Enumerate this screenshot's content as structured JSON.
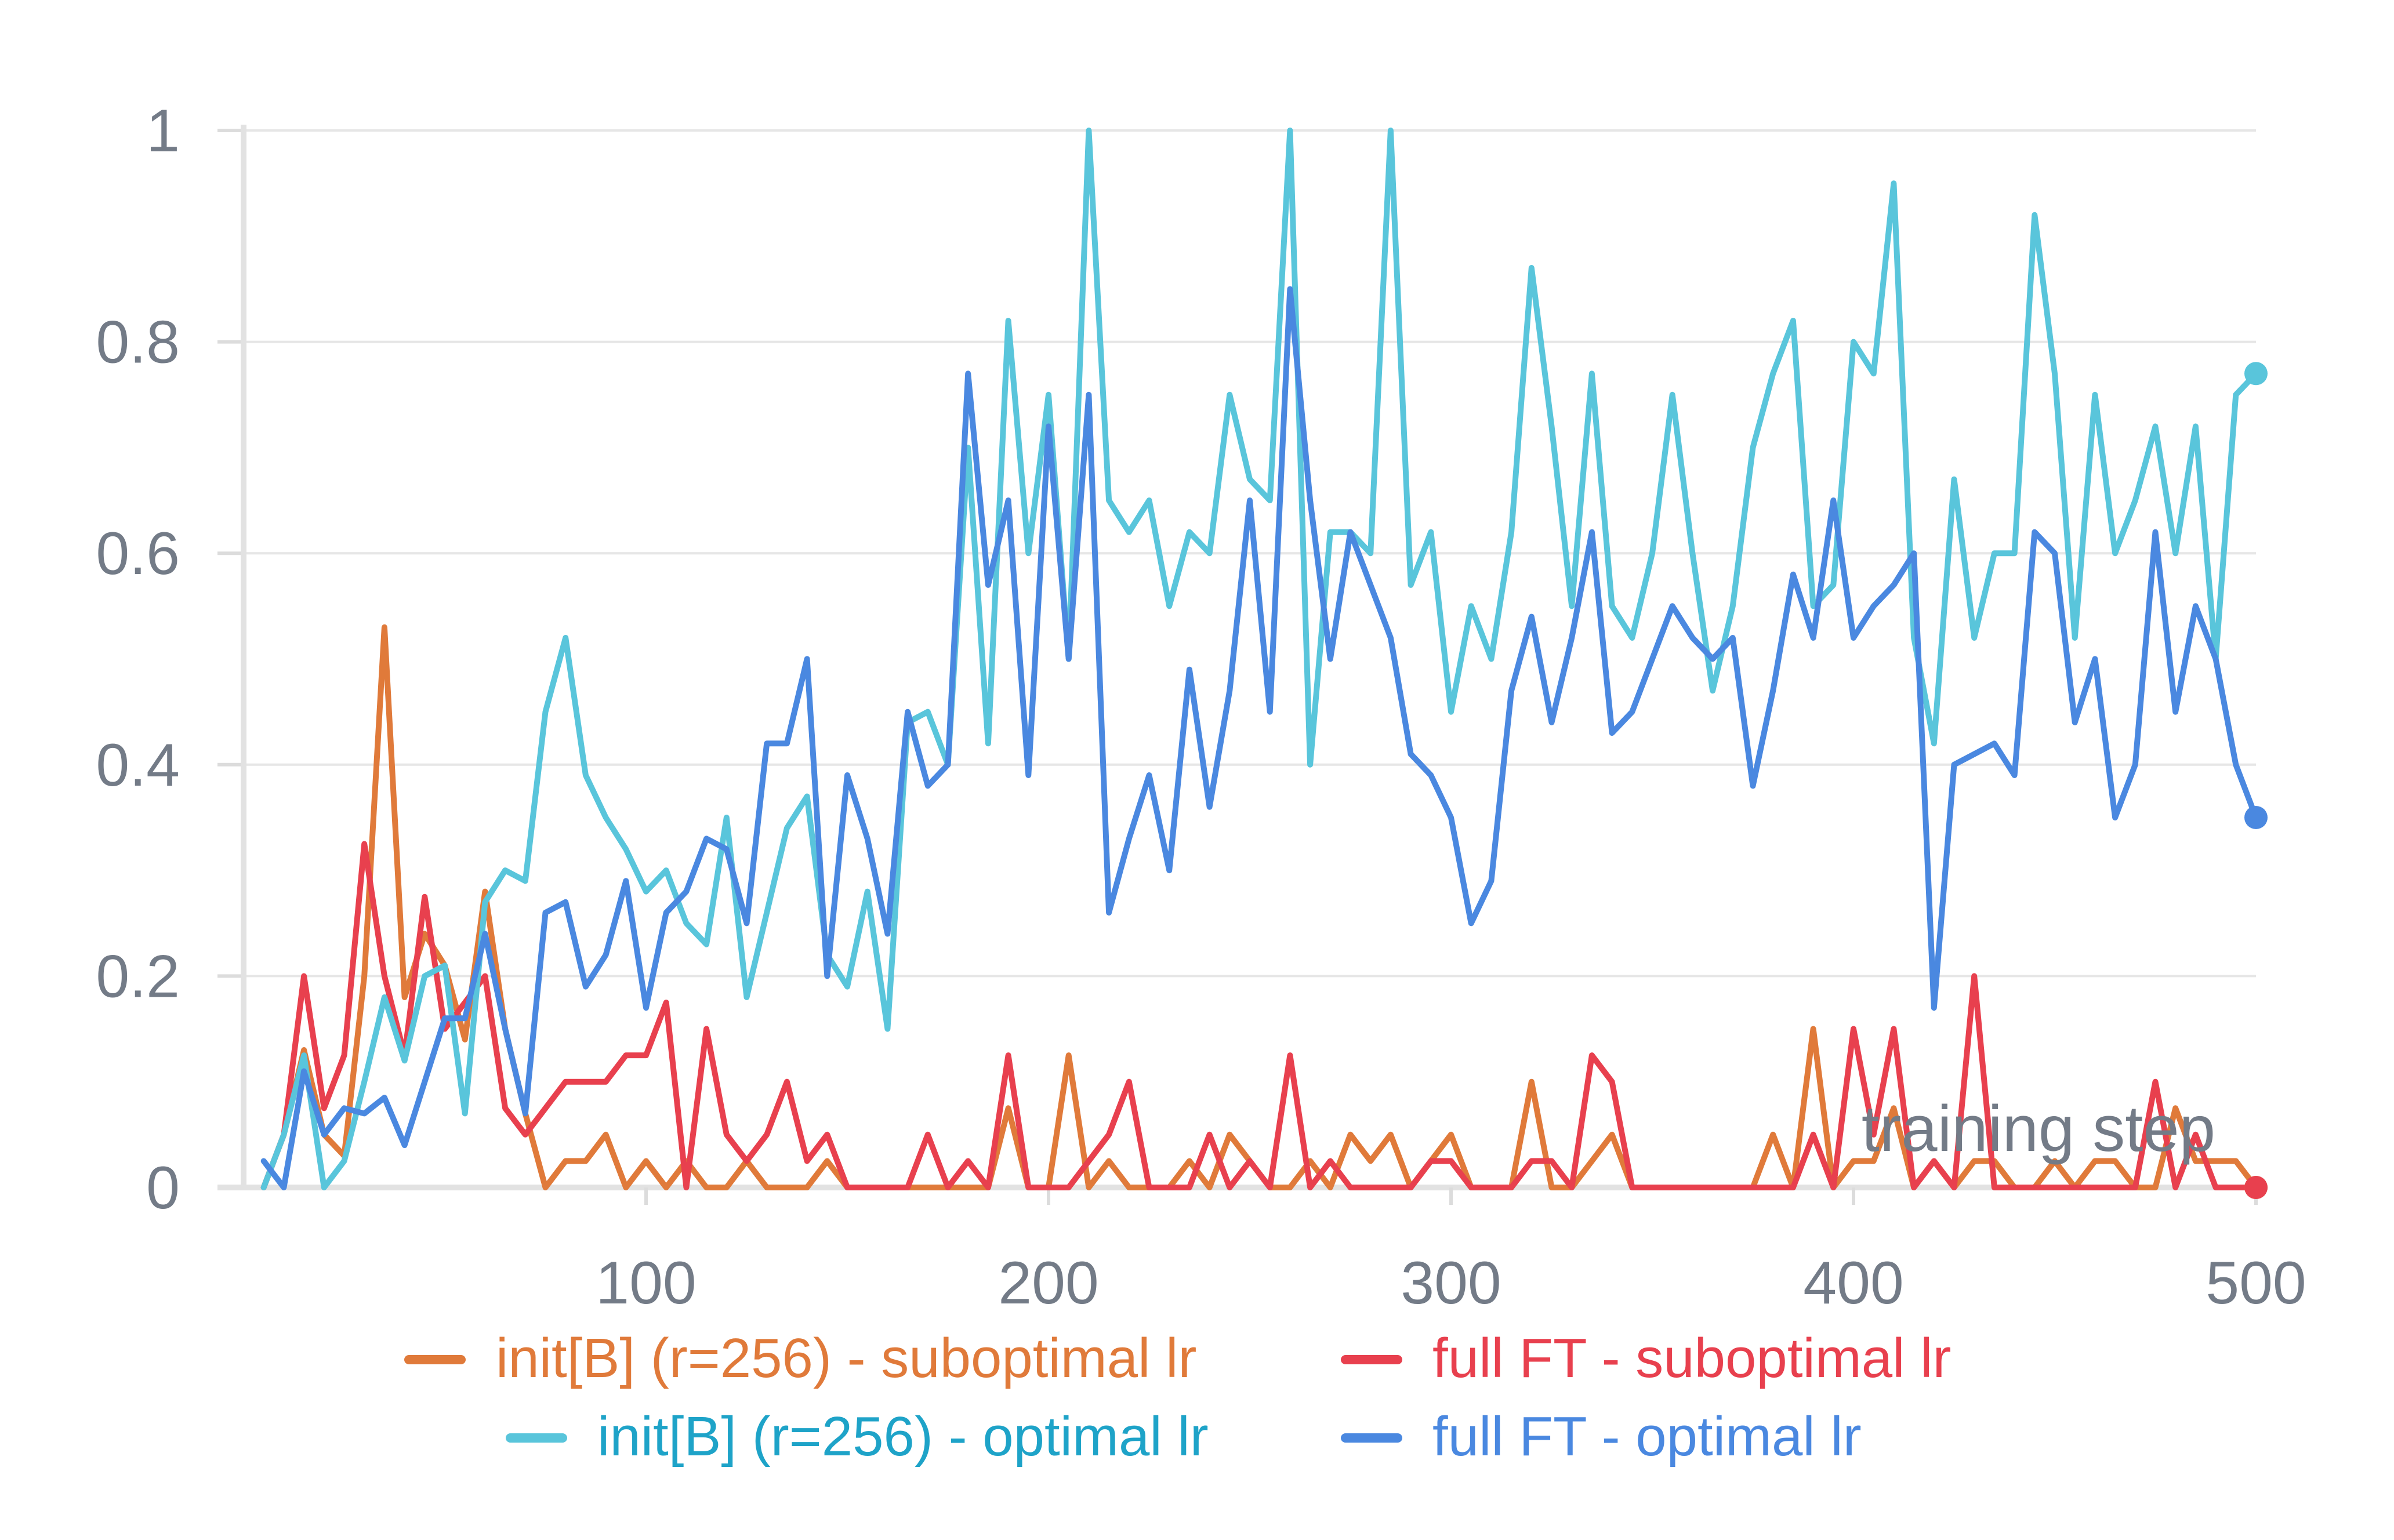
{
  "chart_data": {
    "type": "line",
    "title": "",
    "xlabel": "training step",
    "ylabel": "",
    "xlim": [
      0,
      500
    ],
    "ylim": [
      0,
      1
    ],
    "xticks": [
      100,
      200,
      300,
      400,
      500
    ],
    "xtick_labels": [
      "100",
      "200",
      "300",
      "400",
      "500"
    ],
    "yticks": [
      0,
      0.2,
      0.4,
      0.6,
      0.8,
      1
    ],
    "ytick_labels": [
      "0",
      "0.2",
      "0.4",
      "0.6",
      "0.8",
      "1"
    ],
    "grid": true,
    "legend_position": "bottom",
    "x": [
      5,
      10,
      15,
      20,
      25,
      30,
      35,
      40,
      45,
      50,
      55,
      60,
      65,
      70,
      75,
      80,
      85,
      90,
      95,
      100,
      105,
      110,
      115,
      120,
      125,
      130,
      135,
      140,
      145,
      150,
      155,
      160,
      165,
      170,
      175,
      180,
      185,
      190,
      195,
      200,
      205,
      210,
      215,
      220,
      225,
      230,
      235,
      240,
      245,
      250,
      255,
      260,
      265,
      270,
      275,
      280,
      285,
      290,
      295,
      300,
      305,
      310,
      315,
      320,
      325,
      330,
      335,
      340,
      345,
      350,
      355,
      360,
      365,
      370,
      375,
      380,
      385,
      390,
      395,
      400,
      405,
      410,
      415,
      420,
      425,
      430,
      435,
      440,
      445,
      450,
      455,
      460,
      465,
      470,
      475,
      480,
      485,
      490,
      495,
      500
    ],
    "series": [
      {
        "name": "init[B] (r=256) - suboptimal lr",
        "color": "#e07a3a",
        "values": [
          0,
          0.05,
          0.13,
          0.05,
          0.03,
          0.2,
          0.53,
          0.18,
          0.24,
          0.21,
          0.14,
          0.28,
          0.15,
          0.07,
          0,
          0.025,
          0.025,
          0.05,
          0,
          0.025,
          0,
          0.025,
          0,
          0,
          0.025,
          0,
          0,
          0,
          0.025,
          0,
          0,
          0,
          0,
          0,
          0,
          0,
          0,
          0.075,
          0,
          0,
          0.125,
          0,
          0.025,
          0,
          0,
          0,
          0.025,
          0,
          0.05,
          0.025,
          0,
          0,
          0.025,
          0,
          0.05,
          0.025,
          0.05,
          0,
          0.025,
          0.05,
          0,
          0,
          0,
          0.1,
          0,
          0,
          0.025,
          0.05,
          0,
          0,
          0,
          0,
          0,
          0,
          0,
          0.05,
          0,
          0.15,
          0,
          0.025,
          0.025,
          0.075,
          0,
          0.025,
          0,
          0.025,
          0.025,
          0,
          0,
          0.025,
          0,
          0.025,
          0.025,
          0,
          0,
          0.075,
          0.025,
          0.025,
          0.025,
          0
        ]
      },
      {
        "name": "full FT - suboptimal lr",
        "color": "#e8404e",
        "values": [
          0,
          0.05,
          0.2,
          0.075,
          0.125,
          0.325,
          0.2,
          0.125,
          0.275,
          0.15,
          0.175,
          0.2,
          0.075,
          0.05,
          0.075,
          0.1,
          0.1,
          0.1,
          0.125,
          0.125,
          0.175,
          0,
          0.15,
          0.05,
          0.025,
          0.05,
          0.1,
          0.025,
          0.05,
          0,
          0,
          0,
          0,
          0.05,
          0,
          0.025,
          0,
          0.125,
          0,
          0,
          0,
          0.025,
          0.05,
          0.1,
          0,
          0,
          0,
          0.05,
          0,
          0.025,
          0,
          0.125,
          0,
          0.025,
          0,
          0,
          0,
          0,
          0.025,
          0.025,
          0,
          0,
          0,
          0.025,
          0.025,
          0,
          0.125,
          0.1,
          0,
          0,
          0,
          0,
          0,
          0,
          0,
          0,
          0,
          0.05,
          0,
          0.15,
          0.05,
          0.15,
          0,
          0.025,
          0,
          0.2,
          0,
          0,
          0,
          0,
          0,
          0,
          0,
          0,
          0.1,
          0,
          0.05,
          0,
          0,
          0
        ]
      },
      {
        "name": "init[B] (r=256) - optimal lr",
        "color": "#59c5db",
        "values": [
          0,
          0.05,
          0.125,
          0,
          0.025,
          0.1,
          0.18,
          0.12,
          0.2,
          0.21,
          0.07,
          0.27,
          0.3,
          0.29,
          0.45,
          0.52,
          0.39,
          0.35,
          0.32,
          0.28,
          0.3,
          0.25,
          0.23,
          0.35,
          0.18,
          0.26,
          0.34,
          0.37,
          0.22,
          0.19,
          0.28,
          0.15,
          0.44,
          0.45,
          0.4,
          0.7,
          0.42,
          0.82,
          0.6,
          0.75,
          0.5,
          1,
          0.65,
          0.62,
          0.65,
          0.55,
          0.62,
          0.6,
          0.75,
          0.67,
          0.65,
          1,
          0.4,
          0.62,
          0.62,
          0.6,
          1,
          0.57,
          0.62,
          0.45,
          0.55,
          0.5,
          0.62,
          0.87,
          0.72,
          0.55,
          0.77,
          0.55,
          0.52,
          0.6,
          0.75,
          0.6,
          0.47,
          0.55,
          0.7,
          0.77,
          0.82,
          0.55,
          0.57,
          0.8,
          0.77,
          0.95,
          0.52,
          0.42,
          0.67,
          0.52,
          0.6,
          0.6,
          0.92,
          0.77,
          0.52,
          0.75,
          0.6,
          0.65,
          0.72,
          0.6,
          0.72,
          0.5,
          0.75,
          0.77
        ]
      },
      {
        "name": "full FT - optimal lr",
        "color": "#4a88e0",
        "values": [
          0.025,
          0,
          0.11,
          0.05,
          0.075,
          0.07,
          0.085,
          0.04,
          0.1,
          0.16,
          0.16,
          0.24,
          0.15,
          0.07,
          0.26,
          0.27,
          0.19,
          0.22,
          0.29,
          0.17,
          0.26,
          0.28,
          0.33,
          0.32,
          0.25,
          0.42,
          0.42,
          0.5,
          0.2,
          0.39,
          0.33,
          0.24,
          0.45,
          0.38,
          0.4,
          0.77,
          0.57,
          0.65,
          0.39,
          0.72,
          0.5,
          0.75,
          0.26,
          0.33,
          0.39,
          0.3,
          0.49,
          0.36,
          0.47,
          0.65,
          0.45,
          0.85,
          0.65,
          0.5,
          0.62,
          0.57,
          0.52,
          0.41,
          0.39,
          0.35,
          0.25,
          0.29,
          0.47,
          0.54,
          0.44,
          0.52,
          0.62,
          0.43,
          0.45,
          0.5,
          0.55,
          0.52,
          0.5,
          0.52,
          0.38,
          0.47,
          0.58,
          0.52,
          0.65,
          0.52,
          0.55,
          0.57,
          0.6,
          0.17,
          0.4,
          0.41,
          0.42,
          0.39,
          0.62,
          0.6,
          0.44,
          0.5,
          0.35,
          0.4,
          0.62,
          0.45,
          0.55,
          0.5,
          0.4,
          0.35
        ]
      }
    ]
  }
}
